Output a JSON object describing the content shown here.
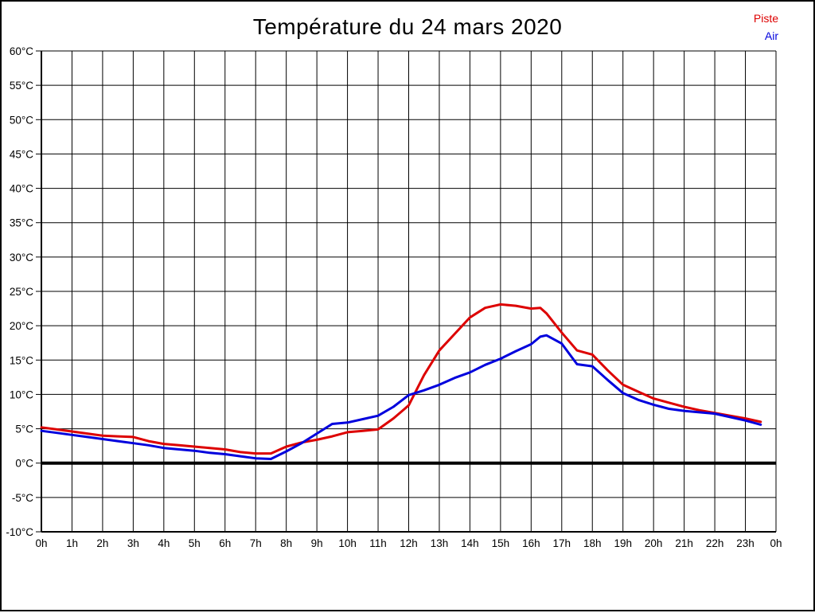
{
  "title": "Température du 24 mars 2020",
  "legend": [
    {
      "label": "Piste",
      "color": "#dd0000"
    },
    {
      "label": "Air",
      "color": "#0000dd"
    }
  ],
  "colors": {
    "grid": "#000000",
    "axis": "#000000",
    "zero_line": "#000000",
    "background": "#ffffff",
    "page_border": "#000000"
  },
  "chart_data": {
    "type": "line",
    "title": "Température du 24 mars 2020",
    "xlabel": "",
    "ylabel": "",
    "xlim": [
      0,
      24
    ],
    "ylim": [
      -10,
      60
    ],
    "grid": true,
    "legend_position": "top-right",
    "x_tick_labels": [
      "0h",
      "1h",
      "2h",
      "3h",
      "4h",
      "5h",
      "6h",
      "7h",
      "8h",
      "9h",
      "10h",
      "11h",
      "12h",
      "13h",
      "14h",
      "15h",
      "16h",
      "17h",
      "18h",
      "19h",
      "20h",
      "21h",
      "22h",
      "23h",
      "0h"
    ],
    "x_tick_values": [
      0,
      1,
      2,
      3,
      4,
      5,
      6,
      7,
      8,
      9,
      10,
      11,
      12,
      13,
      14,
      15,
      16,
      17,
      18,
      19,
      20,
      21,
      22,
      23,
      24
    ],
    "y_tick_labels": [
      "60°C",
      "55°C",
      "50°C",
      "45°C",
      "40°C",
      "35°C",
      "30°C",
      "25°C",
      "20°C",
      "15°C",
      "10°C",
      "5°C",
      "0°C",
      "-5°C",
      "-10°C"
    ],
    "y_tick_values": [
      60,
      55,
      50,
      45,
      40,
      35,
      30,
      25,
      20,
      15,
      10,
      5,
      0,
      -5,
      -10
    ],
    "zero_line_value": 0,
    "x": [
      0,
      0.5,
      1,
      1.5,
      2,
      2.5,
      3,
      3.5,
      4,
      4.5,
      5,
      5.5,
      6,
      6.5,
      7,
      7.5,
      8,
      8.5,
      9,
      9.5,
      10,
      10.5,
      11,
      11.5,
      12,
      12.5,
      13,
      13.5,
      14,
      14.5,
      15,
      15.5,
      16,
      16.3,
      16.5,
      17,
      17.5,
      18,
      18.5,
      19,
      19.5,
      20,
      20.5,
      21,
      21.5,
      22,
      22.5,
      23,
      23.5
    ],
    "series": [
      {
        "name": "Piste",
        "color": "#dd0000",
        "values": [
          5.2,
          4.9,
          4.6,
          4.3,
          4.0,
          3.9,
          3.8,
          3.2,
          2.8,
          2.6,
          2.4,
          2.2,
          2.0,
          1.6,
          1.4,
          1.4,
          2.4,
          3.0,
          3.4,
          3.9,
          4.5,
          4.7,
          4.9,
          6.5,
          8.4,
          12.8,
          16.4,
          18.8,
          21.2,
          22.6,
          23.1,
          22.9,
          22.5,
          22.6,
          21.8,
          19.0,
          16.4,
          15.8,
          13.5,
          11.4,
          10.4,
          9.4,
          8.8,
          8.2,
          7.7,
          7.3,
          6.9,
          6.5,
          6.0
        ]
      },
      {
        "name": "Air",
        "color": "#0000dd",
        "values": [
          4.7,
          4.4,
          4.1,
          3.8,
          3.5,
          3.2,
          2.9,
          2.6,
          2.2,
          2.0,
          1.8,
          1.5,
          1.3,
          1.0,
          0.7,
          0.6,
          1.7,
          2.9,
          4.3,
          5.7,
          5.9,
          6.4,
          6.9,
          8.2,
          9.9,
          10.6,
          11.4,
          12.4,
          13.2,
          14.3,
          15.2,
          16.3,
          17.3,
          18.4,
          18.6,
          17.4,
          14.4,
          14.1,
          12.1,
          10.2,
          9.2,
          8.5,
          7.9,
          7.6,
          7.4,
          7.2,
          6.7,
          6.2,
          5.6
        ]
      }
    ]
  }
}
